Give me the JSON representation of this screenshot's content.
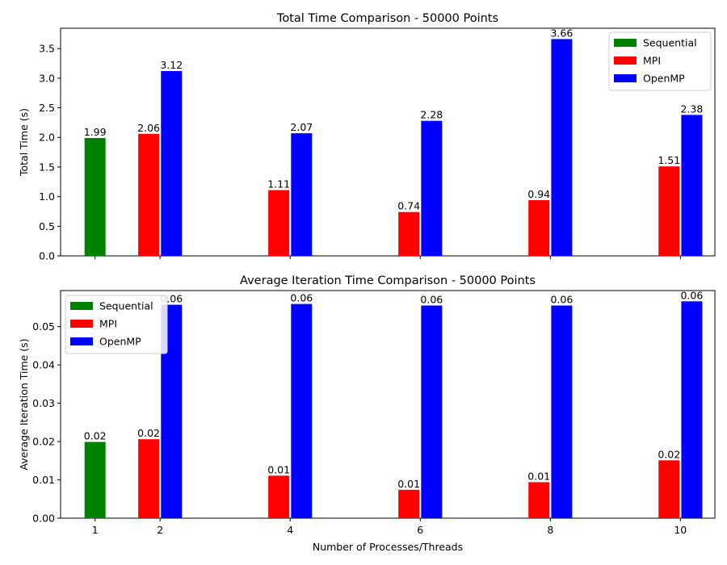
{
  "figure": {
    "xlabel": "Number of Processes/Threads"
  },
  "chart_data": [
    {
      "type": "bar",
      "title": "Total Time Comparison - 50000 Points",
      "xlabel": "",
      "ylabel": "Total Time (s)",
      "x_ticks": [
        1,
        2,
        4,
        6,
        8,
        10
      ],
      "show_tick_labels": false,
      "ylim": [
        0,
        3.843
      ],
      "y_ticks": [
        "0.0",
        "0.5",
        "1.0",
        "1.5",
        "2.0",
        "2.5",
        "3.0",
        "3.5"
      ],
      "legend_position": "top-right",
      "series": [
        {
          "name": "Sequential",
          "color": "#008000",
          "offset": 0,
          "points": [
            {
              "x": 1,
              "value": 1.99,
              "label": "1.99"
            }
          ]
        },
        {
          "name": "MPI",
          "color": "#ff0000",
          "offset": -0.175,
          "points": [
            {
              "x": 2,
              "value": 2.06,
              "label": "2.06"
            },
            {
              "x": 4,
              "value": 1.11,
              "label": "1.11"
            },
            {
              "x": 6,
              "value": 0.74,
              "label": "0.74"
            },
            {
              "x": 8,
              "value": 0.94,
              "label": "0.94"
            },
            {
              "x": 10,
              "value": 1.51,
              "label": "1.51"
            }
          ]
        },
        {
          "name": "OpenMP",
          "color": "#0000ff",
          "offset": 0.175,
          "points": [
            {
              "x": 2,
              "value": 3.12,
              "label": "3.12"
            },
            {
              "x": 4,
              "value": 2.07,
              "label": "2.07"
            },
            {
              "x": 6,
              "value": 2.28,
              "label": "2.28"
            },
            {
              "x": 8,
              "value": 3.66,
              "label": "3.66"
            },
            {
              "x": 10,
              "value": 2.38,
              "label": "2.38"
            }
          ]
        }
      ]
    },
    {
      "type": "bar",
      "title": "Average Iteration Time Comparison - 50000 Points",
      "xlabel": "Number of Processes/Threads",
      "ylabel": "Average Iteration Time (s)",
      "x_ticks": [
        1,
        2,
        4,
        6,
        8,
        10
      ],
      "show_tick_labels": true,
      "ylim": [
        0,
        0.0594
      ],
      "y_ticks": [
        "0.00",
        "0.01",
        "0.02",
        "0.03",
        "0.04",
        "0.05"
      ],
      "legend_position": "top-left",
      "series": [
        {
          "name": "Sequential",
          "color": "#008000",
          "offset": 0,
          "points": [
            {
              "x": 1,
              "value": 0.0199,
              "label": "0.02"
            }
          ]
        },
        {
          "name": "MPI",
          "color": "#ff0000",
          "offset": -0.175,
          "points": [
            {
              "x": 2,
              "value": 0.0206,
              "label": "0.02"
            },
            {
              "x": 4,
              "value": 0.0111,
              "label": "0.01"
            },
            {
              "x": 6,
              "value": 0.0074,
              "label": "0.01"
            },
            {
              "x": 8,
              "value": 0.0094,
              "label": "0.01"
            },
            {
              "x": 10,
              "value": 0.0151,
              "label": "0.02"
            }
          ]
        },
        {
          "name": "OpenMP",
          "color": "#0000ff",
          "offset": 0.175,
          "points": [
            {
              "x": 2,
              "value": 0.0557,
              "label": "0.06"
            },
            {
              "x": 4,
              "value": 0.0559,
              "label": "0.06"
            },
            {
              "x": 6,
              "value": 0.0555,
              "label": "0.06"
            },
            {
              "x": 8,
              "value": 0.0555,
              "label": "0.06"
            },
            {
              "x": 10,
              "value": 0.0566,
              "label": "0.06"
            }
          ]
        }
      ]
    }
  ]
}
